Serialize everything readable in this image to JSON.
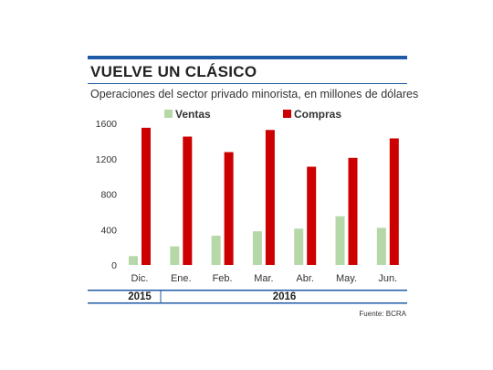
{
  "header": {
    "title": "VUELVE UN CLÁSICO",
    "subtitle": "Operaciones del sector privado minorista, en millones de dólares",
    "source": "Fuente: BCRA"
  },
  "colors": {
    "ventas": "#b6d7a8",
    "compras": "#cc0000",
    "accent": "#1f5aa6"
  },
  "chart_data": {
    "type": "bar",
    "categories": [
      "Dic.",
      "Ene.",
      "Feb.",
      "Mar.",
      "Abr.",
      "May.",
      "Jun."
    ],
    "year_groups": [
      {
        "label": "2015",
        "categories": [
          "Dic."
        ]
      },
      {
        "label": "2016",
        "categories": [
          "Ene.",
          "Feb.",
          "Mar.",
          "Abr.",
          "May.",
          "Jun."
        ]
      }
    ],
    "series": [
      {
        "name": "Ventas",
        "color": "#b6d7a8",
        "values": [
          100,
          210,
          330,
          380,
          410,
          550,
          420
        ]
      },
      {
        "name": "Compras",
        "color": "#cc0000",
        "values": [
          1550,
          1450,
          1275,
          1525,
          1110,
          1210,
          1430
        ]
      }
    ],
    "yticks": [
      0,
      400,
      800,
      1200,
      1600
    ],
    "ylim": [
      0,
      1600
    ],
    "grid": false,
    "legend_position": "top"
  }
}
